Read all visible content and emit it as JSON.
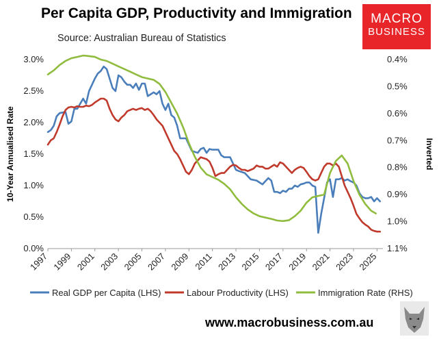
{
  "title": "Per Capita GDP, Productivity and Immigration",
  "subtitle": "Source: Australian Bureau of Statistics",
  "logo": {
    "line1": "MACRO",
    "line2": "BUSINESS"
  },
  "footer": {
    "url": "www.macrobusiness.com.au"
  },
  "colors": {
    "gdp": "#4a7ebb",
    "productivity": "#c0392b",
    "immigration": "#8fbc3c",
    "logo": "#e8262a"
  },
  "chart_data": {
    "type": "line",
    "title": "Per Capita GDP, Productivity and Immigration",
    "ylabel_left": "10-Year Annualised Rate",
    "ylabel_right": "Inverted",
    "x_range": [
      1997,
      2025.5
    ],
    "x_ticks": [
      1997,
      1999,
      2001,
      2003,
      2005,
      2007,
      2009,
      2011,
      2013,
      2015,
      2017,
      2019,
      2021,
      2023,
      2025
    ],
    "y_left": {
      "min": 0.0,
      "max": 3.0,
      "ticks": [
        "0.0%",
        "0.5%",
        "1.0%",
        "1.5%",
        "2.0%",
        "2.5%",
        "3.0%"
      ],
      "tick_values": [
        0,
        0.5,
        1,
        1.5,
        2,
        2.5,
        3
      ]
    },
    "y_right": {
      "inverted": true,
      "min": 0.4,
      "max": 1.1,
      "ticks": [
        "0.4%",
        "0.5%",
        "0.6%",
        "0.7%",
        "0.8%",
        "0.9%",
        "1.0%",
        "1.1%"
      ],
      "tick_values": [
        0.4,
        0.5,
        0.6,
        0.7,
        0.8,
        0.9,
        1.0,
        1.1
      ]
    },
    "series": [
      {
        "name": "Real GDP per Capita (LHS)",
        "axis": "left",
        "color": "#4a7ebb",
        "points": [
          [
            1997,
            1.85
          ],
          [
            1997.25,
            1.88
          ],
          [
            1997.5,
            1.95
          ],
          [
            1997.75,
            2.1
          ],
          [
            1998,
            2.15
          ],
          [
            1998.5,
            2.17
          ],
          [
            1998.75,
            1.98
          ],
          [
            1999,
            2.02
          ],
          [
            1999.25,
            2.22
          ],
          [
            1999.5,
            2.22
          ],
          [
            1999.75,
            2.3
          ],
          [
            2000,
            2.38
          ],
          [
            2000.25,
            2.3
          ],
          [
            2000.5,
            2.5
          ],
          [
            2000.75,
            2.6
          ],
          [
            2001,
            2.7
          ],
          [
            2001.25,
            2.78
          ],
          [
            2001.5,
            2.82
          ],
          [
            2001.75,
            2.89
          ],
          [
            2002,
            2.85
          ],
          [
            2002.25,
            2.7
          ],
          [
            2002.5,
            2.55
          ],
          [
            2002.75,
            2.5
          ],
          [
            2003,
            2.75
          ],
          [
            2003.25,
            2.72
          ],
          [
            2003.5,
            2.65
          ],
          [
            2003.75,
            2.6
          ],
          [
            2004,
            2.6
          ],
          [
            2004.25,
            2.55
          ],
          [
            2004.5,
            2.62
          ],
          [
            2004.75,
            2.52
          ],
          [
            2005,
            2.62
          ],
          [
            2005.25,
            2.62
          ],
          [
            2005.5,
            2.42
          ],
          [
            2005.75,
            2.45
          ],
          [
            2006,
            2.48
          ],
          [
            2006.25,
            2.45
          ],
          [
            2006.5,
            2.5
          ],
          [
            2006.75,
            2.3
          ],
          [
            2007,
            2.2
          ],
          [
            2007.25,
            2.3
          ],
          [
            2007.5,
            2.12
          ],
          [
            2007.75,
            2.08
          ],
          [
            2008,
            1.95
          ],
          [
            2008.25,
            1.75
          ],
          [
            2008.75,
            1.75
          ],
          [
            2009,
            1.65
          ],
          [
            2009.25,
            1.55
          ],
          [
            2009.75,
            1.52
          ],
          [
            2010,
            1.58
          ],
          [
            2010.25,
            1.6
          ],
          [
            2010.5,
            1.52
          ],
          [
            2010.75,
            1.58
          ],
          [
            2011,
            1.57
          ],
          [
            2011.5,
            1.57
          ],
          [
            2011.75,
            1.48
          ],
          [
            2012,
            1.45
          ],
          [
            2012.5,
            1.45
          ],
          [
            2012.75,
            1.35
          ],
          [
            2013,
            1.25
          ],
          [
            2013.25,
            1.23
          ],
          [
            2013.75,
            1.2
          ],
          [
            2014,
            1.15
          ],
          [
            2014.25,
            1.1
          ],
          [
            2014.75,
            1.08
          ],
          [
            2015,
            1.05
          ],
          [
            2015.25,
            1.02
          ],
          [
            2015.75,
            1.12
          ],
          [
            2016,
            1.08
          ],
          [
            2016.25,
            0.9
          ],
          [
            2016.5,
            0.9
          ],
          [
            2016.75,
            0.88
          ],
          [
            2017,
            0.92
          ],
          [
            2017.25,
            0.9
          ],
          [
            2017.5,
            0.95
          ],
          [
            2017.75,
            0.95
          ],
          [
            2018,
            1.0
          ],
          [
            2018.25,
            0.98
          ],
          [
            2018.5,
            1.02
          ],
          [
            2018.75,
            1.03
          ],
          [
            2019,
            1.05
          ],
          [
            2019.25,
            1.05
          ],
          [
            2019.5,
            1.0
          ],
          [
            2019.75,
            0.98
          ],
          [
            2020,
            0.25
          ],
          [
            2020.25,
            0.55
          ],
          [
            2020.5,
            0.8
          ],
          [
            2020.75,
            1.05
          ],
          [
            2021,
            1.1
          ],
          [
            2021.25,
            0.82
          ],
          [
            2021.5,
            1.1
          ],
          [
            2021.75,
            1.1
          ],
          [
            2022,
            1.12
          ],
          [
            2022.25,
            1.08
          ],
          [
            2022.5,
            1.1
          ],
          [
            2022.75,
            1.07
          ],
          [
            2023,
            1.05
          ],
          [
            2023.25,
            1.0
          ],
          [
            2023.5,
            0.88
          ],
          [
            2023.75,
            0.82
          ],
          [
            2024,
            0.8
          ],
          [
            2024.25,
            0.8
          ],
          [
            2024.5,
            0.82
          ],
          [
            2024.75,
            0.75
          ],
          [
            2025,
            0.8
          ],
          [
            2025.25,
            0.75
          ]
        ]
      },
      {
        "name": "Labour Productivity (LHS)",
        "axis": "left",
        "color": "#c0392b",
        "points": [
          [
            1997,
            1.65
          ],
          [
            1997.25,
            1.72
          ],
          [
            1997.5,
            1.75
          ],
          [
            1997.75,
            1.85
          ],
          [
            1998,
            1.97
          ],
          [
            1998.25,
            2.1
          ],
          [
            1998.5,
            2.2
          ],
          [
            1998.75,
            2.24
          ],
          [
            1999,
            2.25
          ],
          [
            1999.25,
            2.24
          ],
          [
            1999.5,
            2.26
          ],
          [
            1999.75,
            2.25
          ],
          [
            2000,
            2.25
          ],
          [
            2000.25,
            2.27
          ],
          [
            2000.5,
            2.26
          ],
          [
            2000.75,
            2.28
          ],
          [
            2001,
            2.32
          ],
          [
            2001.25,
            2.35
          ],
          [
            2001.5,
            2.38
          ],
          [
            2001.75,
            2.38
          ],
          [
            2002,
            2.35
          ],
          [
            2002.25,
            2.22
          ],
          [
            2002.5,
            2.12
          ],
          [
            2002.75,
            2.05
          ],
          [
            2003,
            2.02
          ],
          [
            2003.25,
            2.08
          ],
          [
            2003.5,
            2.12
          ],
          [
            2003.75,
            2.18
          ],
          [
            2004,
            2.2
          ],
          [
            2004.25,
            2.22
          ],
          [
            2004.5,
            2.2
          ],
          [
            2004.75,
            2.22
          ],
          [
            2005,
            2.23
          ],
          [
            2005.25,
            2.2
          ],
          [
            2005.5,
            2.22
          ],
          [
            2005.75,
            2.18
          ],
          [
            2006,
            2.12
          ],
          [
            2006.25,
            2.05
          ],
          [
            2006.5,
            2.0
          ],
          [
            2006.75,
            1.95
          ],
          [
            2007,
            1.85
          ],
          [
            2007.25,
            1.75
          ],
          [
            2007.5,
            1.65
          ],
          [
            2007.75,
            1.55
          ],
          [
            2008,
            1.5
          ],
          [
            2008.25,
            1.42
          ],
          [
            2008.5,
            1.32
          ],
          [
            2008.75,
            1.22
          ],
          [
            2009,
            1.18
          ],
          [
            2009.25,
            1.25
          ],
          [
            2009.5,
            1.35
          ],
          [
            2009.75,
            1.4
          ],
          [
            2010,
            1.45
          ],
          [
            2010.5,
            1.42
          ],
          [
            2010.75,
            1.38
          ],
          [
            2011,
            1.28
          ],
          [
            2011.25,
            1.15
          ],
          [
            2011.5,
            1.18
          ],
          [
            2011.75,
            1.2
          ],
          [
            2012,
            1.2
          ],
          [
            2012.25,
            1.25
          ],
          [
            2012.5,
            1.3
          ],
          [
            2012.75,
            1.33
          ],
          [
            2013,
            1.32
          ],
          [
            2013.25,
            1.28
          ],
          [
            2013.5,
            1.25
          ],
          [
            2013.75,
            1.25
          ],
          [
            2014,
            1.23
          ],
          [
            2014.25,
            1.25
          ],
          [
            2014.5,
            1.27
          ],
          [
            2014.75,
            1.32
          ],
          [
            2015,
            1.3
          ],
          [
            2015.25,
            1.3
          ],
          [
            2015.5,
            1.27
          ],
          [
            2015.75,
            1.27
          ],
          [
            2016,
            1.3
          ],
          [
            2016.25,
            1.33
          ],
          [
            2016.5,
            1.3
          ],
          [
            2016.75,
            1.37
          ],
          [
            2017,
            1.35
          ],
          [
            2017.25,
            1.3
          ],
          [
            2017.5,
            1.25
          ],
          [
            2017.75,
            1.2
          ],
          [
            2018,
            1.25
          ],
          [
            2018.25,
            1.28
          ],
          [
            2018.5,
            1.3
          ],
          [
            2018.75,
            1.28
          ],
          [
            2019,
            1.22
          ],
          [
            2019.25,
            1.15
          ],
          [
            2019.5,
            1.1
          ],
          [
            2019.75,
            1.08
          ],
          [
            2020,
            1.1
          ],
          [
            2020.25,
            1.2
          ],
          [
            2020.5,
            1.3
          ],
          [
            2020.75,
            1.35
          ],
          [
            2021,
            1.35
          ],
          [
            2021.25,
            1.32
          ],
          [
            2021.5,
            1.35
          ],
          [
            2021.75,
            1.3
          ],
          [
            2022,
            1.15
          ],
          [
            2022.25,
            1.0
          ],
          [
            2022.5,
            0.9
          ],
          [
            2022.75,
            0.8
          ],
          [
            2023,
            0.68
          ],
          [
            2023.25,
            0.55
          ],
          [
            2023.5,
            0.48
          ],
          [
            2023.75,
            0.42
          ],
          [
            2024,
            0.38
          ],
          [
            2024.25,
            0.35
          ],
          [
            2024.5,
            0.3
          ],
          [
            2024.75,
            0.28
          ],
          [
            2025,
            0.27
          ],
          [
            2025.25,
            0.27
          ]
        ]
      },
      {
        "name": "Immigration Rate (RHS)",
        "axis": "right",
        "color": "#8fbc3c",
        "points": [
          [
            1997,
            0.455
          ],
          [
            1997.5,
            0.44
          ],
          [
            1998,
            0.42
          ],
          [
            1998.5,
            0.405
          ],
          [
            1999,
            0.395
          ],
          [
            1999.5,
            0.39
          ],
          [
            2000,
            0.385
          ],
          [
            2000.5,
            0.387
          ],
          [
            2001,
            0.39
          ],
          [
            2001.5,
            0.4
          ],
          [
            2002,
            0.405
          ],
          [
            2002.5,
            0.415
          ],
          [
            2003,
            0.425
          ],
          [
            2003.5,
            0.435
          ],
          [
            2004,
            0.445
          ],
          [
            2004.5,
            0.455
          ],
          [
            2005,
            0.465
          ],
          [
            2005.5,
            0.47
          ],
          [
            2006,
            0.475
          ],
          [
            2006.5,
            0.49
          ],
          [
            2007,
            0.52
          ],
          [
            2007.5,
            0.56
          ],
          [
            2008,
            0.6
          ],
          [
            2008.5,
            0.65
          ],
          [
            2009,
            0.71
          ],
          [
            2009.5,
            0.76
          ],
          [
            2010,
            0.8
          ],
          [
            2010.5,
            0.825
          ],
          [
            2011,
            0.835
          ],
          [
            2011.5,
            0.845
          ],
          [
            2012,
            0.86
          ],
          [
            2012.5,
            0.88
          ],
          [
            2013,
            0.91
          ],
          [
            2013.5,
            0.935
          ],
          [
            2014,
            0.955
          ],
          [
            2014.5,
            0.97
          ],
          [
            2015,
            0.98
          ],
          [
            2015.5,
            0.985
          ],
          [
            2016,
            0.99
          ],
          [
            2016.5,
            0.996
          ],
          [
            2017,
            0.998
          ],
          [
            2017.5,
            0.995
          ],
          [
            2018,
            0.98
          ],
          [
            2018.5,
            0.96
          ],
          [
            2019,
            0.93
          ],
          [
            2019.5,
            0.91
          ],
          [
            2020,
            0.905
          ],
          [
            2020.5,
            0.9
          ],
          [
            2021,
            0.82
          ],
          [
            2021.5,
            0.775
          ],
          [
            2022,
            0.755
          ],
          [
            2022.5,
            0.785
          ],
          [
            2023,
            0.85
          ],
          [
            2023.5,
            0.9
          ],
          [
            2024,
            0.935
          ],
          [
            2024.5,
            0.96
          ],
          [
            2024.9,
            0.97
          ]
        ]
      }
    ],
    "legend": {
      "position": "bottom",
      "entries": [
        "Real GDP per Capita (LHS)",
        "Labour Productivity (LHS)",
        "Immigration Rate (RHS)"
      ]
    }
  }
}
